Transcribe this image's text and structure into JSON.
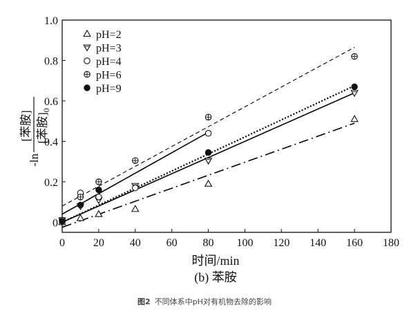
{
  "figure": {
    "subtitle": "(b) 苯胺",
    "caption_number": "图2",
    "caption_text": "不同体系中pH对有机物去除的影响"
  },
  "chart_data": {
    "type": "scatter",
    "xlabel": "时间/min",
    "ylabel": {
      "prefix": "-ln",
      "numerator": "[苯胺]",
      "denominator": "[苯胺]",
      "denominator_subscript": "0"
    },
    "xlim": [
      0,
      180
    ],
    "ylim": [
      -0.05,
      1.0
    ],
    "xticks": [
      0,
      20,
      40,
      60,
      80,
      100,
      120,
      140,
      160,
      180
    ],
    "yticks": [
      0,
      0.2,
      0.4,
      0.6,
      0.8,
      1.0
    ],
    "ytick_labels": [
      "0",
      "0.2",
      "0.4",
      "0.6",
      "0.8",
      "1.0"
    ],
    "legend_position": "top-left",
    "grid": false,
    "series": [
      {
        "name": "pH=2",
        "marker": "triangle-up-open",
        "line_style": "dash-dot",
        "color": "#000000",
        "x": [
          0,
          10,
          20,
          40,
          80,
          160
        ],
        "y": [
          0.0,
          0.02,
          0.04,
          0.065,
          0.19,
          0.51
        ],
        "fit": [
          [
            0,
            -0.025
          ],
          [
            160,
            0.49
          ]
        ]
      },
      {
        "name": "pH=3",
        "marker": "triangle-down-open",
        "line_style": "solid",
        "color": "#000000",
        "x": [
          0,
          10,
          20,
          40,
          80,
          160
        ],
        "y": [
          0.01,
          0.08,
          0.11,
          0.18,
          0.305,
          0.64
        ],
        "fit": [
          [
            0,
            0.0
          ],
          [
            160,
            0.64
          ]
        ]
      },
      {
        "name": "pH=4",
        "marker": "circle-open",
        "line_style": "solid",
        "color": "#000000",
        "x": [
          0,
          10,
          20,
          40,
          80
        ],
        "y": [
          0.01,
          0.145,
          0.125,
          0.17,
          0.44
        ],
        "fit": [
          [
            0,
            0.04
          ],
          [
            80,
            0.445
          ]
        ]
      },
      {
        "name": "pH=6",
        "marker": "circle-plus",
        "line_style": "dashed",
        "color": "#000000",
        "x": [
          0,
          10,
          20,
          40,
          80,
          160
        ],
        "y": [
          0.01,
          0.125,
          0.2,
          0.305,
          0.52,
          0.82
        ],
        "fit": [
          [
            0,
            0.08
          ],
          [
            160,
            0.865
          ]
        ]
      },
      {
        "name": "pH=9",
        "marker": "circle-filled",
        "line_style": "dotted",
        "color": "#000000",
        "x": [
          0,
          10,
          20,
          80,
          160
        ],
        "y": [
          0.005,
          0.085,
          0.16,
          0.345,
          0.67
        ],
        "fit": [
          [
            0,
            0.0
          ],
          [
            160,
            0.675
          ]
        ]
      }
    ]
  }
}
